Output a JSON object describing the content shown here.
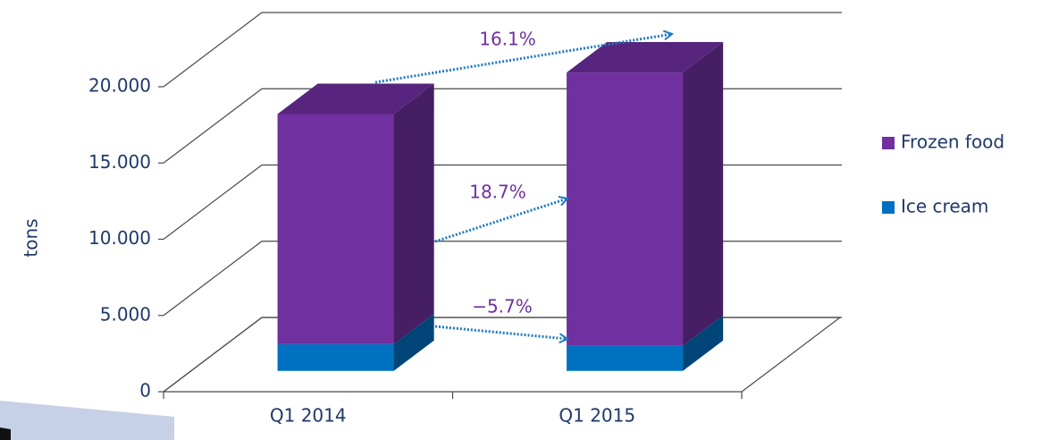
{
  "chart_data": {
    "type": "bar3d-stacked",
    "y_label": "tons",
    "categories": [
      "Q1 2014",
      "Q1 2015"
    ],
    "series": [
      {
        "name": "Ice cream",
        "color": "#0070c0",
        "values": [
          1750,
          1650
        ]
      },
      {
        "name": "Frozen food",
        "color": "#7030a0",
        "values": [
          15100,
          17920
        ]
      }
    ],
    "ylim": [
      0,
      20000
    ],
    "yticks": [
      0,
      {
        "value": 5000,
        "label": "5.000"
      },
      {
        "value": 10000,
        "label": "10.000"
      },
      {
        "value": 15000,
        "label": "15.000"
      },
      {
        "value": 20000,
        "label": "20.000"
      }
    ],
    "grid": true,
    "legend": "right",
    "annotations": [
      {
        "text": "16.1%"
      },
      {
        "text": "18.7%"
      },
      {
        "text": "−5.7%"
      }
    ]
  }
}
